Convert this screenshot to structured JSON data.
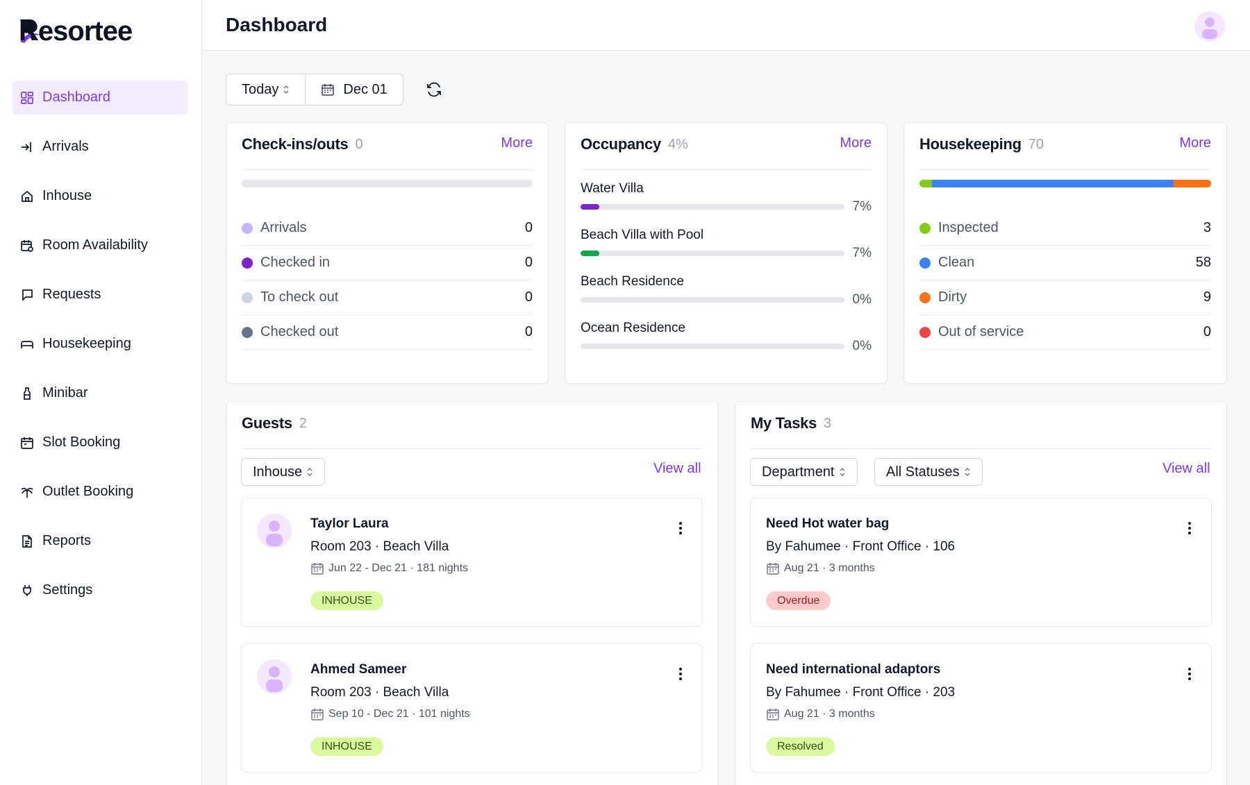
{
  "app": {
    "logo_text": "Resortee"
  },
  "sidebar": {
    "items": [
      {
        "label": "Dashboard",
        "icon": "dashboard-icon"
      },
      {
        "label": "Arrivals",
        "icon": "arrivals-icon"
      },
      {
        "label": "Inhouse",
        "icon": "home-icon"
      },
      {
        "label": "Room Availability",
        "icon": "calendar-icon"
      },
      {
        "label": "Requests",
        "icon": "chat-icon"
      },
      {
        "label": "Housekeeping",
        "icon": "bed-icon"
      },
      {
        "label": "Minibar",
        "icon": "bottle-icon"
      },
      {
        "label": "Slot Booking",
        "icon": "calendar-slot-icon"
      },
      {
        "label": "Outlet Booking",
        "icon": "palm-icon"
      },
      {
        "label": "Reports",
        "icon": "report-icon"
      },
      {
        "label": "Settings",
        "icon": "plug-icon"
      }
    ]
  },
  "header": {
    "title": "Dashboard"
  },
  "toolbar": {
    "period_label": "Today",
    "date_label": "Dec 01"
  },
  "checkins": {
    "title": "Check-ins/outs",
    "count": "0",
    "more": "More",
    "rows": [
      {
        "label": "Arrivals",
        "value": "0",
        "color": "#c4b5fd"
      },
      {
        "label": "Checked in",
        "value": "0",
        "color": "#7e22ce"
      },
      {
        "label": "To check out",
        "value": "0",
        "color": "#cbd5e1"
      },
      {
        "label": "Checked out",
        "value": "0",
        "color": "#64748b"
      }
    ]
  },
  "occupancy": {
    "title": "Occupancy",
    "count": "4%",
    "more": "More",
    "rows": [
      {
        "name": "Water Villa",
        "pct": "7%",
        "fill": 0.07,
        "color": "#7e22ce"
      },
      {
        "name": "Beach Villa with Pool",
        "pct": "7%",
        "fill": 0.07,
        "color": "#16a34a"
      },
      {
        "name": "Beach Residence",
        "pct": "0%",
        "fill": 0,
        "color": "#7e22ce"
      },
      {
        "name": "Ocean Residence",
        "pct": "0%",
        "fill": 0,
        "color": "#7e22ce"
      }
    ]
  },
  "housekeeping": {
    "title": "Housekeeping",
    "count": "70",
    "more": "More",
    "rows": [
      {
        "label": "Inspected",
        "value": "3",
        "color": "#84cc16"
      },
      {
        "label": "Clean",
        "value": "58",
        "color": "#3b82f6"
      },
      {
        "label": "Dirty",
        "value": "9",
        "color": "#f97316"
      },
      {
        "label": "Out of service",
        "value": "0",
        "color": "#ef4444"
      }
    ]
  },
  "guests": {
    "title": "Guests",
    "count": "2",
    "filter": "Inhouse",
    "view_all": "View all",
    "items": [
      {
        "name": "Taylor Laura",
        "room": "Room 203 · Beach Villa",
        "stay": "Jun 22 - Dec 21 · 181 nights",
        "status": "INHOUSE"
      },
      {
        "name": "Ahmed Sameer",
        "room": "Room 203 · Beach Villa",
        "stay": "Sep 10 - Dec 21 · 101 nights",
        "status": "INHOUSE"
      }
    ]
  },
  "tasks": {
    "title": "My Tasks",
    "count": "3",
    "filter_department": "Department",
    "filter_status": "All Statuses",
    "view_all": "View all",
    "items": [
      {
        "title": "Need Hot water bag",
        "by": "By Fahumee · Front Office · 106",
        "when": "Aug 21 · 3 months",
        "status": "Overdue"
      },
      {
        "title": "Need international adaptors",
        "by": "By Fahumee · Front Office · 203",
        "when": "Aug 21 · 3 months",
        "status": "Resolved"
      }
    ]
  }
}
